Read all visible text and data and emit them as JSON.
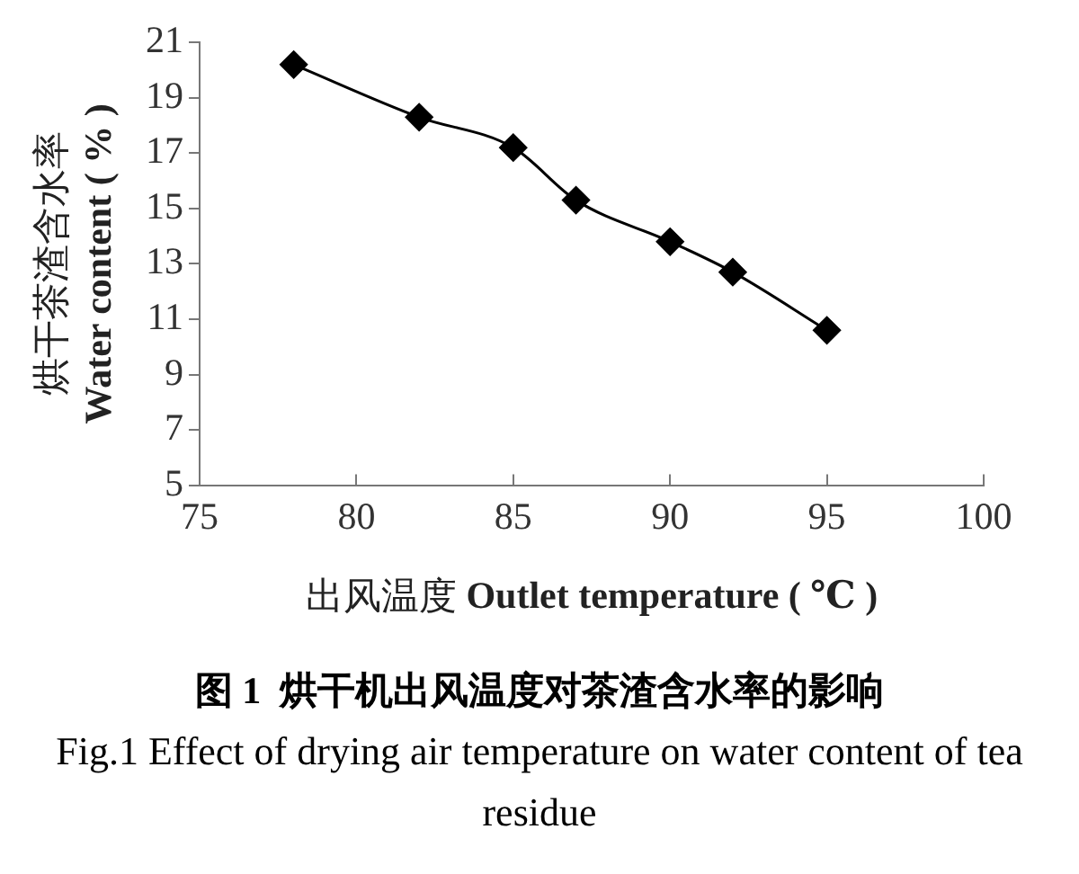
{
  "chart_data": {
    "type": "line",
    "xlabel": "出风温度 Outlet temperature ( ℃ )",
    "ylabel": "烘干茶渣含水率 Water content ( % )",
    "x": [
      78,
      82,
      85,
      87,
      90,
      92,
      95
    ],
    "series": [
      {
        "color": "#000000",
        "values": [
          20.2,
          18.3,
          17.2,
          15.3,
          13.8,
          12.7,
          10.6
        ]
      }
    ],
    "xlim": [
      75,
      100
    ],
    "xticks": [
      75,
      80,
      85,
      90,
      95,
      100
    ],
    "ylim": [
      5,
      21
    ],
    "yticks": [
      5,
      7,
      9,
      11,
      13,
      15,
      17,
      19,
      21
    ],
    "marker": "diamond",
    "line_style": "solid",
    "grid": false,
    "legend": false,
    "annotations": [
      "图 1  烘干机出风温度对茶渣含水率的影响",
      "Fig.1 Effect of drying air temperature on water content of tea residue"
    ]
  }
}
